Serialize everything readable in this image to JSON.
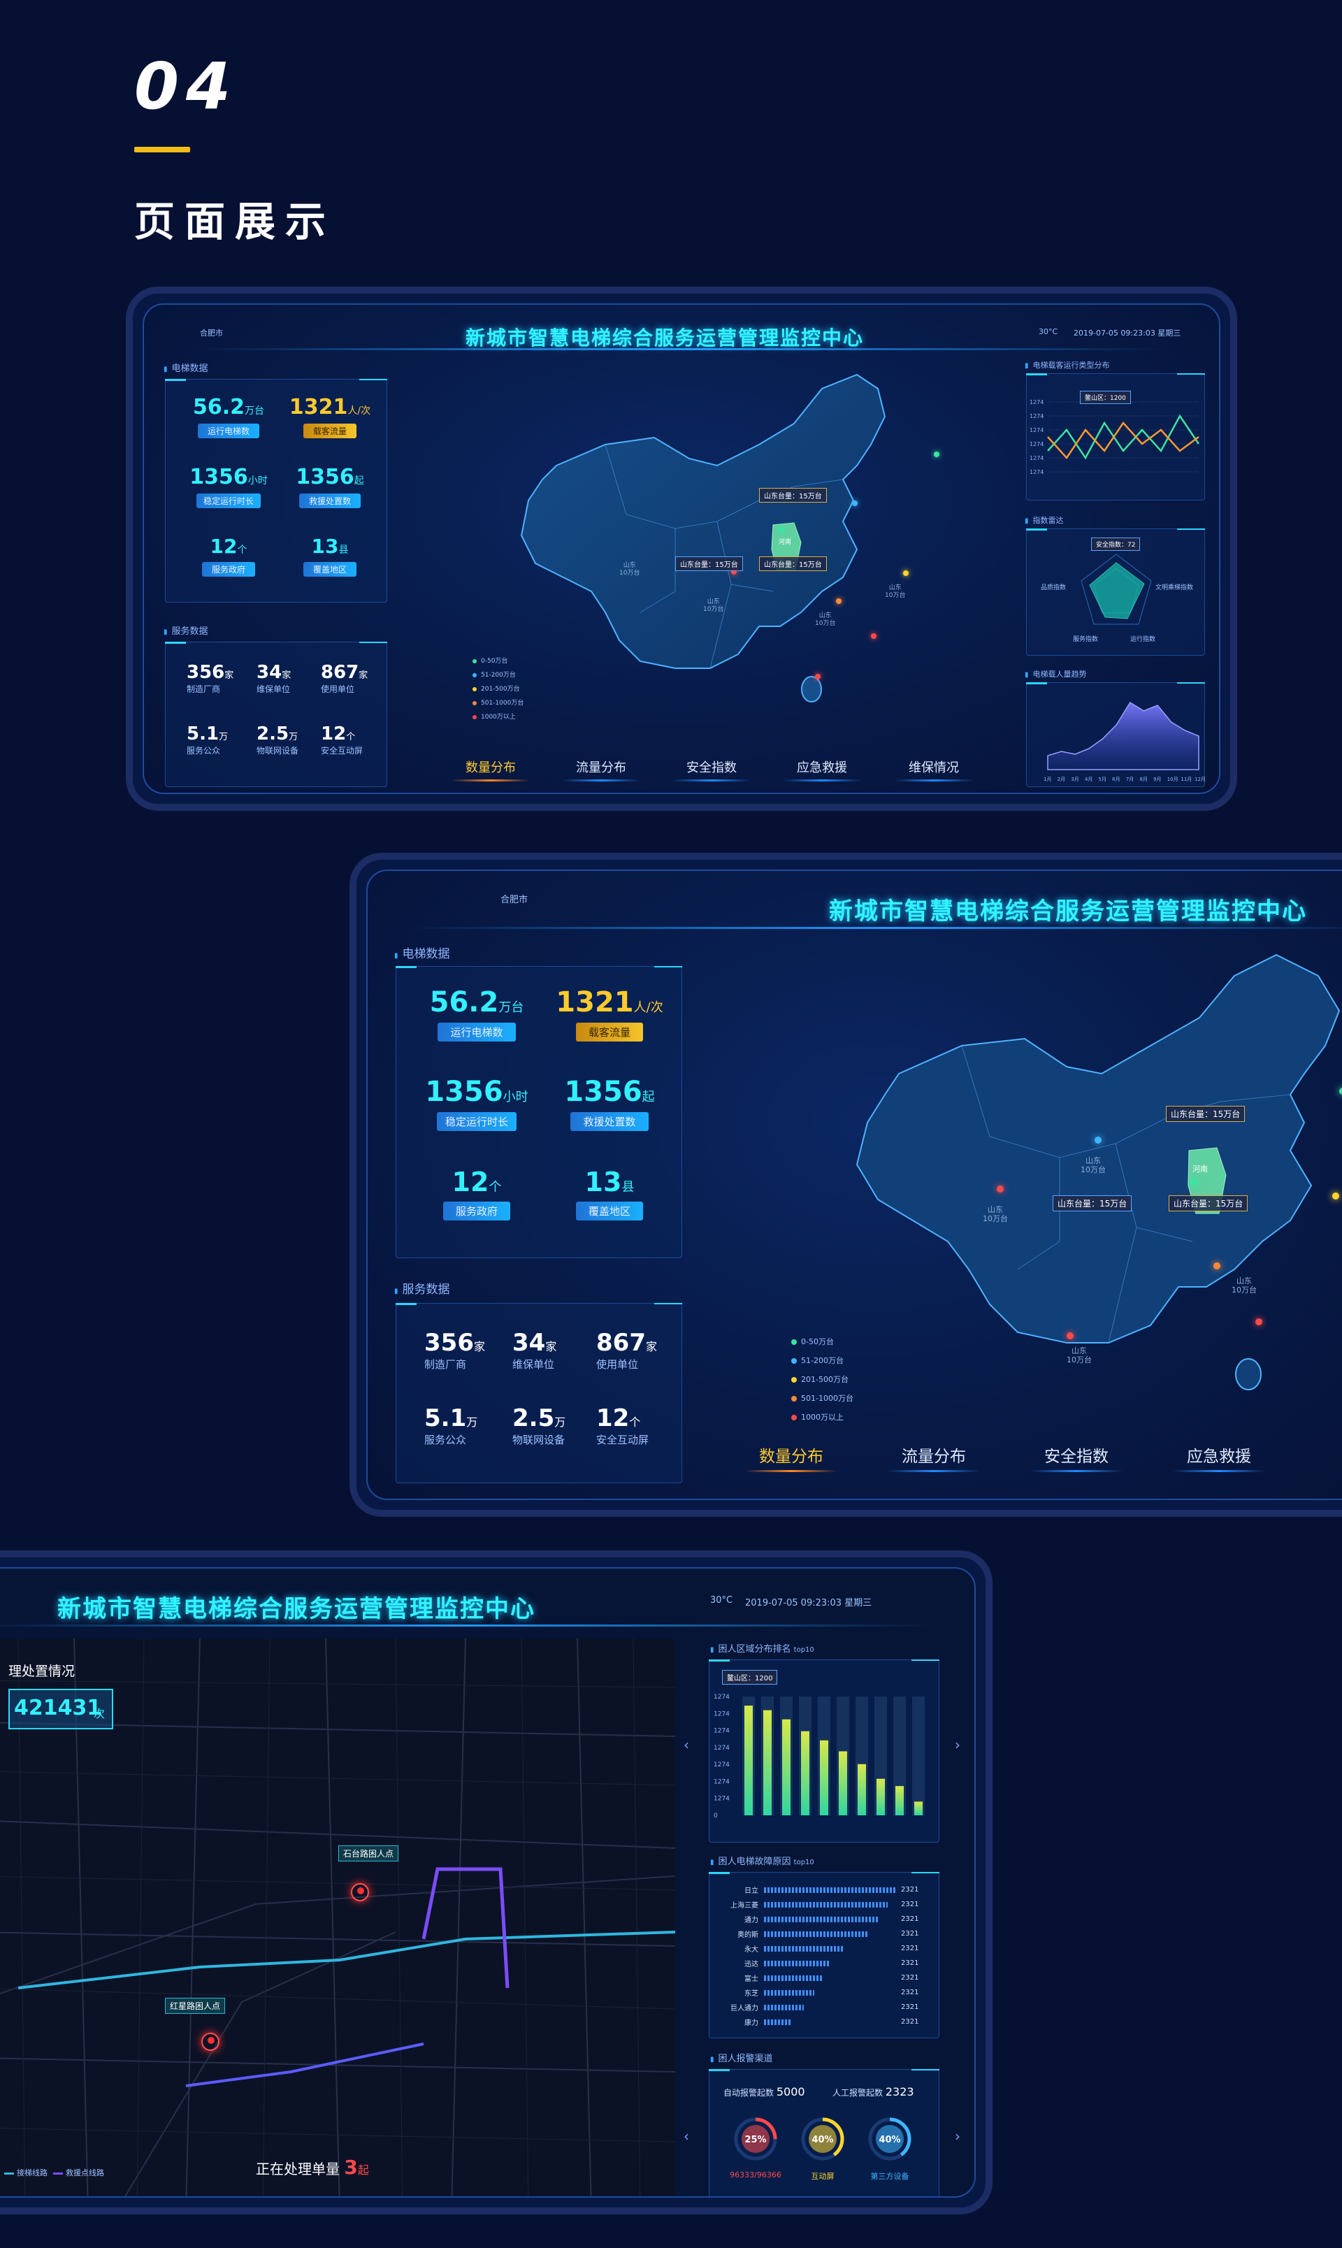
{
  "header": {
    "number": "04",
    "title": "页面展示"
  },
  "dashboard": {
    "title": "新城市智慧电梯综合服务运营管理监控中心",
    "location": "合肥市",
    "weather": "30°C",
    "datetime": "2019-07-05 09:23:03 星期三",
    "elevator_section": "电梯数据",
    "service_section": "服务数据",
    "stats": {
      "running": {
        "value": "56.2",
        "unit": "万台",
        "label": "运行电梯数"
      },
      "traffic": {
        "value": "1321",
        "unit": "人/次",
        "label": "载客流量"
      },
      "stable": {
        "value": "1356",
        "unit": "小时",
        "label": "稳定运行时长"
      },
      "rescue": {
        "value": "1356",
        "unit": "起",
        "label": "救援处置数"
      },
      "gov": {
        "value": "12",
        "unit": "个",
        "label": "服务政府"
      },
      "area": {
        "value": "13",
        "unit": "县",
        "label": "覆盖地区"
      }
    },
    "services": {
      "makers": {
        "value": "356",
        "unit": "家",
        "label": "制造厂商"
      },
      "maintain": {
        "value": "34",
        "unit": "家",
        "label": "维保单位"
      },
      "users": {
        "value": "867",
        "unit": "家",
        "label": "使用单位"
      },
      "public": {
        "value": "5.1",
        "unit": "万",
        "label": "服务公众"
      },
      "iot": {
        "value": "2.5",
        "unit": "万",
        "label": "物联网设备"
      },
      "screens": {
        "value": "12",
        "unit": "个",
        "label": "安全互动屏"
      }
    },
    "tabs": [
      "数量分布",
      "流量分布",
      "安全指数",
      "应急救援",
      "维保情况"
    ],
    "legend": [
      {
        "label": "0-50万台",
        "color": "#3fe3a0"
      },
      {
        "label": "51-200万台",
        "color": "#3fb6ff"
      },
      {
        "label": "201-500万台",
        "color": "#ffd52e"
      },
      {
        "label": "501-1000万台",
        "color": "#ff8a3a"
      },
      {
        "label": "1000万以上",
        "color": "#ff4a4a"
      }
    ],
    "map_labels": {
      "shandong1": "山东台量：15万台",
      "shandong2": "山东台量：15万台",
      "shandong3": "山东台量：15万台",
      "henan": "河南"
    },
    "city_label": "山东",
    "city_sub": "10万台",
    "right": {
      "type_section": "电梯载客运行类型分布",
      "type_tip": "鳌山区：1200",
      "index_section": "指数雷达",
      "index_tip": "安全指数：72",
      "radar_labels": [
        "品质指数",
        "文明乘梯指数",
        "服务指数",
        "运行指数"
      ],
      "trend_section": "电梯载人量趋势",
      "y_ticks": [
        "1274",
        "1274",
        "1274",
        "1274",
        "1274",
        "1274"
      ]
    }
  },
  "dashboard3": {
    "title": "新城市智慧电梯综合服务运营管理监控中心",
    "weather": "30°C",
    "datetime": "2019-07-05 09:23:03 星期三",
    "left_title": "理处置情况",
    "left_value": "421431",
    "left_unit": "次",
    "marker1": "石台路困人点",
    "marker2": "红星路困人点",
    "processing": "正在处理单量",
    "processing_count": "3",
    "processing_unit": "起",
    "legend1": "接梯线路",
    "legend2": "救援点线路",
    "rank_section": "困人区域分布排名",
    "rank_tag": "top10",
    "rank_tip": "鳌山区：1200",
    "rank_y": [
      "1274",
      "1274",
      "1274",
      "1274",
      "1274",
      "1274",
      "1274",
      "0"
    ],
    "fault_section": "困人电梯故障原因",
    "fault_tag": "top10",
    "faults": [
      {
        "label": "日立",
        "value": 2321,
        "frac": 1.0
      },
      {
        "label": "上海三菱",
        "value": 2321,
        "frac": 0.93
      },
      {
        "label": "通力",
        "value": 2321,
        "frac": 0.87
      },
      {
        "label": "奥的斯",
        "value": 2321,
        "frac": 0.78
      },
      {
        "label": "永大",
        "value": 2321,
        "frac": 0.6
      },
      {
        "label": "迅达",
        "value": 2321,
        "frac": 0.5
      },
      {
        "label": "富士",
        "value": 2321,
        "frac": 0.44
      },
      {
        "label": "东芝",
        "value": 2321,
        "frac": 0.38
      },
      {
        "label": "巨人通力",
        "value": 2321,
        "frac": 0.3
      },
      {
        "label": "康力",
        "value": 2321,
        "frac": 0.2
      }
    ],
    "alarm_section": "困人报警渠道",
    "auto_label": "自动报警起数",
    "auto_value": "5000",
    "manual_label": "人工报警起数",
    "manual_value": "2323",
    "gauges": [
      {
        "pct": "25%",
        "label": "96333/96366",
        "color": "#ff4a4a",
        "frac": 0.25
      },
      {
        "pct": "40%",
        "label": "互动屏",
        "color": "#ffd52e",
        "frac": 0.4
      },
      {
        "pct": "40%",
        "label": "第三方设备",
        "color": "#3fb6ff",
        "frac": 0.4
      }
    ]
  },
  "chart_data": [
    {
      "type": "line",
      "title": "电梯载客运行类型分布",
      "series": [
        {
          "values": [
            3,
            6,
            2,
            7,
            3,
            6,
            3,
            8,
            4
          ]
        },
        {
          "values": [
            5,
            2,
            6,
            3,
            7,
            4,
            6,
            3,
            5
          ]
        }
      ]
    },
    {
      "type": "area",
      "title": "电梯载人量趋势",
      "values": [
        1,
        1.3,
        1.1,
        1.5,
        2.2,
        3.2,
        4.8,
        4.2,
        4.6,
        3.4,
        2.8,
        2.4
      ],
      "categories": [
        "1月",
        "2月",
        "3月",
        "4月",
        "5月",
        "6月",
        "7月",
        "8月",
        "9月",
        "10月",
        "11月",
        "12月"
      ]
    },
    {
      "type": "bar",
      "title": "困人区域分布排名",
      "values": [
        1200,
        1150,
        1050,
        920,
        820,
        700,
        560,
        400,
        320,
        150
      ]
    }
  ]
}
